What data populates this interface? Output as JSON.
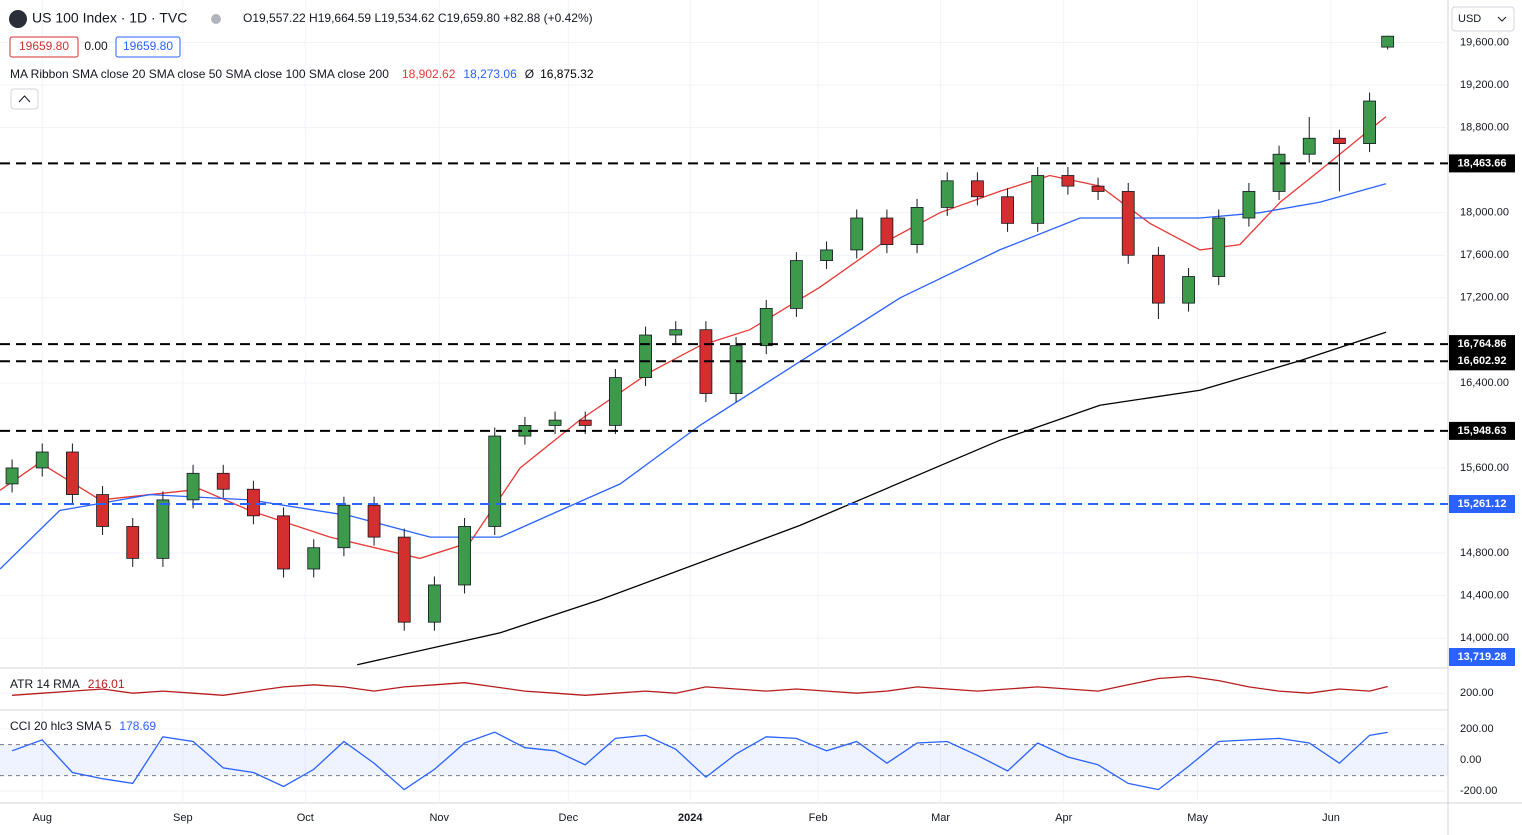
{
  "header": {
    "symbol": "US 100 Index · 1D · TVC",
    "ohlc": "O19,557.22 H19,664.59 L19,534.62 C19,659.80 +82.88 (+0.42%)",
    "bid": "19659.80",
    "spread": "0.00",
    "ask": "19659.80",
    "currency": "USD"
  },
  "chart_data": [
    {
      "type": "candlestick",
      "legend": "MA Ribbon SMA close 20 SMA close 50 SMA close 100 SMA close 200",
      "up_color": "#3d9a4a",
      "down_color": "#d32f2f",
      "x": [
        2,
        7,
        12,
        17,
        22,
        27,
        32,
        37,
        42,
        47,
        52,
        57,
        62,
        67,
        72,
        77,
        82,
        87,
        92,
        97,
        102,
        107,
        112,
        117,
        122,
        127,
        132,
        137,
        142,
        147,
        152,
        157,
        162,
        167,
        172,
        177,
        182,
        187,
        192,
        197,
        202,
        207,
        212,
        217,
        222,
        227,
        230
      ],
      "open": [
        15450,
        15600,
        15750,
        15350,
        15050,
        14750,
        15300,
        15550,
        15400,
        15150,
        14650,
        14850,
        15250,
        14950,
        14150,
        14500,
        15050,
        15900,
        16000,
        16050,
        16000,
        16450,
        16850,
        16900,
        16300,
        16750,
        17100,
        17550,
        17650,
        17950,
        17700,
        18050,
        18300,
        18150,
        17900,
        18350,
        18250,
        18200,
        17600,
        17150,
        17400,
        17950,
        18200,
        18550,
        18700,
        18650,
        19557.22
      ],
      "high": [
        15680,
        15830,
        15830,
        15430,
        15130,
        15380,
        15630,
        15630,
        15480,
        15230,
        14930,
        15330,
        15330,
        15030,
        14580,
        15130,
        15980,
        16080,
        16130,
        16130,
        16530,
        16930,
        16980,
        16980,
        16830,
        17180,
        17630,
        17730,
        18030,
        18030,
        18130,
        18380,
        18380,
        18230,
        18430,
        18430,
        18330,
        18280,
        17680,
        17480,
        18030,
        18280,
        18630,
        18900,
        18780,
        19130,
        19664.59
      ],
      "low": [
        15370,
        15520,
        15270,
        14970,
        14670,
        14670,
        15220,
        15320,
        15070,
        14570,
        14570,
        14770,
        14870,
        14070,
        14070,
        14420,
        14970,
        15820,
        15920,
        15920,
        15920,
        16370,
        16770,
        16220,
        16220,
        16670,
        17020,
        17470,
        17570,
        17620,
        17620,
        17970,
        18070,
        17820,
        17820,
        18170,
        18120,
        17520,
        17000,
        17070,
        17320,
        17870,
        18120,
        18470,
        18200,
        18570,
        19534.62
      ],
      "close": [
        15600,
        15750,
        15350,
        15050,
        14750,
        15300,
        15550,
        15400,
        15150,
        14650,
        14850,
        15250,
        14950,
        14150,
        14500,
        15050,
        15900,
        16000,
        16050,
        16000,
        16450,
        16850,
        16900,
        16300,
        16750,
        17100,
        17550,
        17650,
        17950,
        17700,
        18050,
        18300,
        18150,
        17900,
        18350,
        18250,
        18200,
        17600,
        17150,
        17400,
        17950,
        18200,
        18550,
        18700,
        18650,
        19050,
        19659.8
      ],
      "series": [
        {
          "name": "SMA close 20",
          "color": "#e53935",
          "last_label": "18,902.62",
          "x": [
            0,
            6.6,
            16.6,
            33.2,
            41.4,
            54.7,
            69.6,
            77.9,
            86.2,
            96.1,
            107.7,
            116,
            124.3,
            135.9,
            145.9,
            155.8,
            165.7,
            174,
            182.3,
            190.6,
            198.9,
            205.5,
            212.2,
            218.8,
            229.7
          ],
          "values": [
            15390,
            15650,
            15300,
            15400,
            15200,
            14950,
            14750,
            14900,
            15600,
            16050,
            16500,
            16750,
            16900,
            17300,
            17700,
            18000,
            18200,
            18350,
            18250,
            17900,
            17650,
            17700,
            18100,
            18400,
            18902.62
          ]
        },
        {
          "name": "SMA close 50",
          "color": "#2962ff",
          "last_label": "18,273.06",
          "x": [
            0,
            9.9,
            24.9,
            41.4,
            58,
            71.3,
            82.9,
            92.8,
            102.8,
            116,
            132.6,
            149.2,
            165.7,
            179,
            190.6,
            198.9,
            208.8,
            218.8,
            229.7
          ],
          "values": [
            14650,
            15200,
            15350,
            15300,
            15150,
            14950,
            14950,
            15200,
            15450,
            16000,
            16600,
            17200,
            17650,
            17950,
            17950,
            17950,
            18000,
            18100,
            18273.06
          ]
        },
        {
          "name": "SMA close 200",
          "color": "#000000",
          "symbol": "Ø",
          "last_label": "16,875.32",
          "x": [
            59.2,
            82.9,
            99.4,
            132.6,
            165.7,
            182.3,
            198.9,
            215.5,
            229.7
          ],
          "values": [
            13750,
            14050,
            14360,
            15060,
            15860,
            16190,
            16330,
            16610,
            16875.32
          ]
        }
      ],
      "levels": [
        {
          "value": 18463.66,
          "label": "18,463.66",
          "color": "#000000",
          "line": true
        },
        {
          "value": 16764.86,
          "label": "16,764.86",
          "color": "#000000",
          "line": true
        },
        {
          "value": 16602.92,
          "label": "16,602.92",
          "color": "#000000",
          "line": true
        },
        {
          "value": 15948.63,
          "label": "15,948.63",
          "color": "#000000",
          "line": true
        },
        {
          "value": 15261.12,
          "label": "15,261.12",
          "color": "#2962ff",
          "line": true
        },
        {
          "value": 13719.28,
          "label": "13,719.28",
          "color": "#2962ff",
          "line": false
        }
      ],
      "xlim": [
        0,
        240
      ],
      "xticks": [
        {
          "value": 7,
          "label": "Aug"
        },
        {
          "value": 30.3,
          "label": "Sep"
        },
        {
          "value": 50.6,
          "label": "Oct"
        },
        {
          "value": 72.8,
          "label": "Nov"
        },
        {
          "value": 94.2,
          "label": "Dec"
        },
        {
          "value": 114.4,
          "label": "2024"
        },
        {
          "value": 135.6,
          "label": "Feb"
        },
        {
          "value": 155.9,
          "label": "Mar"
        },
        {
          "value": 176.3,
          "label": "Apr"
        },
        {
          "value": 198.5,
          "label": "May"
        },
        {
          "value": 220.6,
          "label": "Jun"
        }
      ],
      "ylim": [
        13719.28,
        20000
      ],
      "yticks": [
        {
          "value": 19600,
          "label": "19,600.00"
        },
        {
          "value": 19200,
          "label": "19,200.00"
        },
        {
          "value": 18800,
          "label": "18,800.00"
        },
        {
          "value": 18000,
          "label": "18,000.00"
        },
        {
          "value": 17600,
          "label": "17,600.00"
        },
        {
          "value": 17200,
          "label": "17,200.00"
        },
        {
          "value": 16400,
          "label": "16,400.00"
        },
        {
          "value": 15600,
          "label": "15,600.00"
        },
        {
          "value": 14800,
          "label": "14,800.00"
        },
        {
          "value": 14400,
          "label": "14,400.00"
        },
        {
          "value": 14000,
          "label": "14,000.00"
        }
      ],
      "grid": true
    },
    {
      "type": "line",
      "title": "ATR 14 RMA",
      "last_label": "216.01",
      "color": "#b71c1c",
      "x": [
        2,
        7,
        12,
        17,
        22,
        27,
        32,
        37,
        42,
        47,
        52,
        57,
        62,
        67,
        72,
        77,
        82,
        87,
        92,
        97,
        102,
        107,
        112,
        117,
        122,
        127,
        132,
        137,
        142,
        147,
        152,
        157,
        162,
        167,
        172,
        177,
        182,
        187,
        192,
        197,
        202,
        207,
        212,
        217,
        222,
        227,
        230
      ],
      "values": [
        195,
        200,
        205,
        210,
        200,
        205,
        200,
        195,
        205,
        215,
        220,
        215,
        205,
        215,
        220,
        225,
        215,
        205,
        200,
        195,
        200,
        205,
        200,
        215,
        210,
        205,
        210,
        205,
        200,
        205,
        215,
        210,
        205,
        210,
        215,
        210,
        205,
        220,
        235,
        240,
        230,
        215,
        205,
        200,
        210,
        205,
        216.01
      ],
      "ylim": [
        160,
        260
      ],
      "yticks": [
        {
          "value": 200,
          "label": "200.00"
        }
      ]
    },
    {
      "type": "line",
      "title": "CCI 20 hlc3 SMA 5",
      "last_label": "178.69",
      "color": "#2962ff",
      "band": [
        -100,
        100
      ],
      "x": [
        2,
        7,
        12,
        17,
        22,
        27,
        32,
        37,
        42,
        47,
        52,
        57,
        62,
        67,
        72,
        77,
        82,
        87,
        92,
        97,
        102,
        107,
        112,
        117,
        122,
        127,
        132,
        137,
        142,
        147,
        152,
        157,
        162,
        167,
        172,
        177,
        182,
        187,
        192,
        197,
        202,
        207,
        212,
        217,
        222,
        227,
        230
      ],
      "values": [
        60,
        130,
        -80,
        -120,
        -150,
        150,
        120,
        -50,
        -80,
        -170,
        -60,
        120,
        -20,
        -190,
        -60,
        110,
        180,
        80,
        60,
        -30,
        140,
        160,
        70,
        -110,
        40,
        150,
        140,
        60,
        120,
        -20,
        110,
        120,
        30,
        -70,
        110,
        20,
        -30,
        -150,
        -190,
        -40,
        120,
        130,
        140,
        110,
        -20,
        160,
        178.69
      ],
      "ylim": [
        -270,
        310
      ],
      "yticks": [
        {
          "value": 200,
          "label": "200.00"
        },
        {
          "value": 0,
          "label": "0.00"
        },
        {
          "value": -200,
          "label": "-200.00"
        }
      ]
    }
  ]
}
